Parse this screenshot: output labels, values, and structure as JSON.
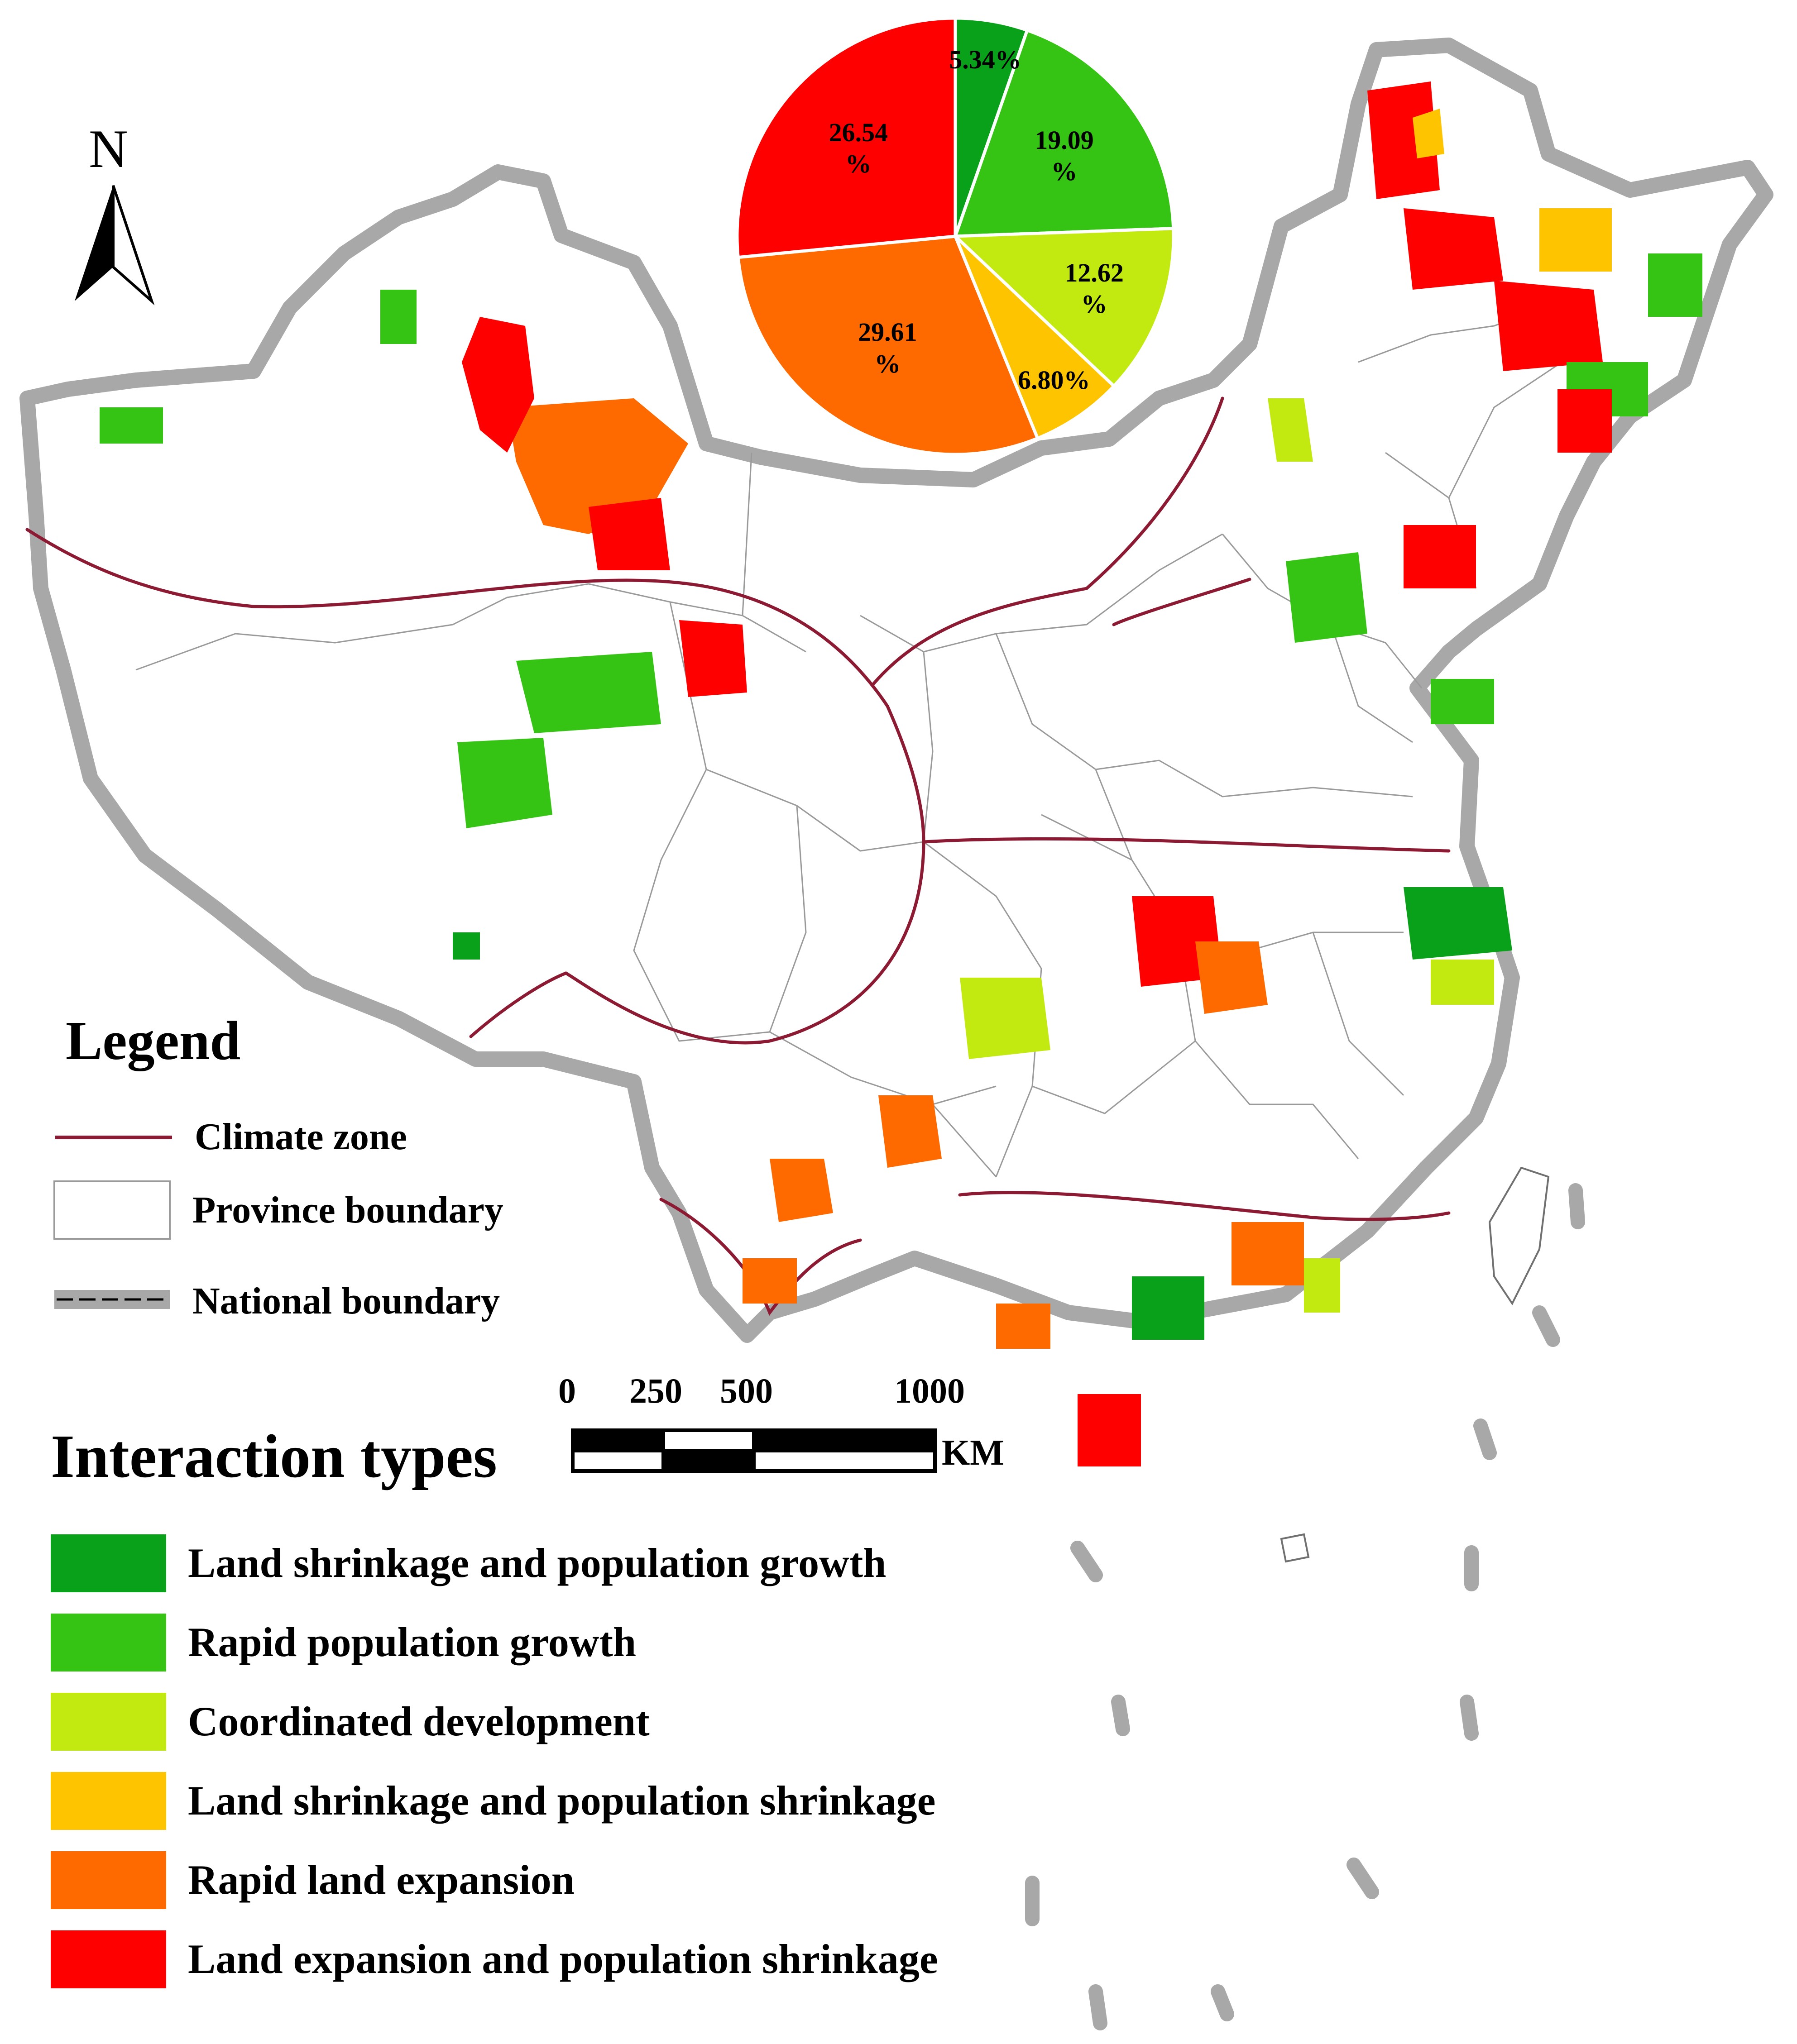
{
  "north_arrow": {
    "letter": "N"
  },
  "legend": {
    "title": "Legend",
    "items": [
      {
        "label": "Climate zone",
        "symbol": "line",
        "color": "#8b1a32"
      },
      {
        "label": "Province boundary",
        "symbol": "box",
        "color": "#9a9a9a"
      },
      {
        "label": "National boundary",
        "symbol": "dashed-band",
        "color": "#909090"
      }
    ]
  },
  "scale_bar": {
    "ticks": [
      "0",
      "250",
      "500",
      "1000"
    ],
    "unit": "KM"
  },
  "interaction_types": {
    "title": "Interaction types",
    "items": [
      {
        "label": "Land shrinkage and population growth",
        "color": "#0aa11a"
      },
      {
        "label": "Rapid population growth",
        "color": "#36c414"
      },
      {
        "label": "Coordinated development",
        "color": "#c3ea10"
      },
      {
        "label": "Land shrinkage and population shrinkage",
        "color": "#ffc400"
      },
      {
        "label": "Rapid land expansion",
        "color": "#ff6a00"
      },
      {
        "label": "Land expansion and population shrinkage",
        "color": "#ff0000"
      }
    ]
  },
  "chart_data": {
    "type": "pie",
    "slices": [
      {
        "category": "Land shrinkage and population growth",
        "value": 5.34,
        "label": "5.34%",
        "color": "#0aa11a"
      },
      {
        "category": "Rapid population growth",
        "value": 19.09,
        "label": "19.09\n%",
        "color": "#36c414"
      },
      {
        "category": "Coordinated development",
        "value": 12.62,
        "label": "12.62\n%",
        "color": "#c3ea10"
      },
      {
        "category": "Land shrinkage and population shrinkage",
        "value": 6.8,
        "label": "6.80%",
        "color": "#ffc400"
      },
      {
        "category": "Rapid land expansion",
        "value": 29.61,
        "label": "29.61\n%",
        "color": "#ff6a00"
      },
      {
        "category": "Land expansion and population shrinkage",
        "value": 26.54,
        "label": "26.54\n%",
        "color": "#ff0000"
      }
    ]
  }
}
